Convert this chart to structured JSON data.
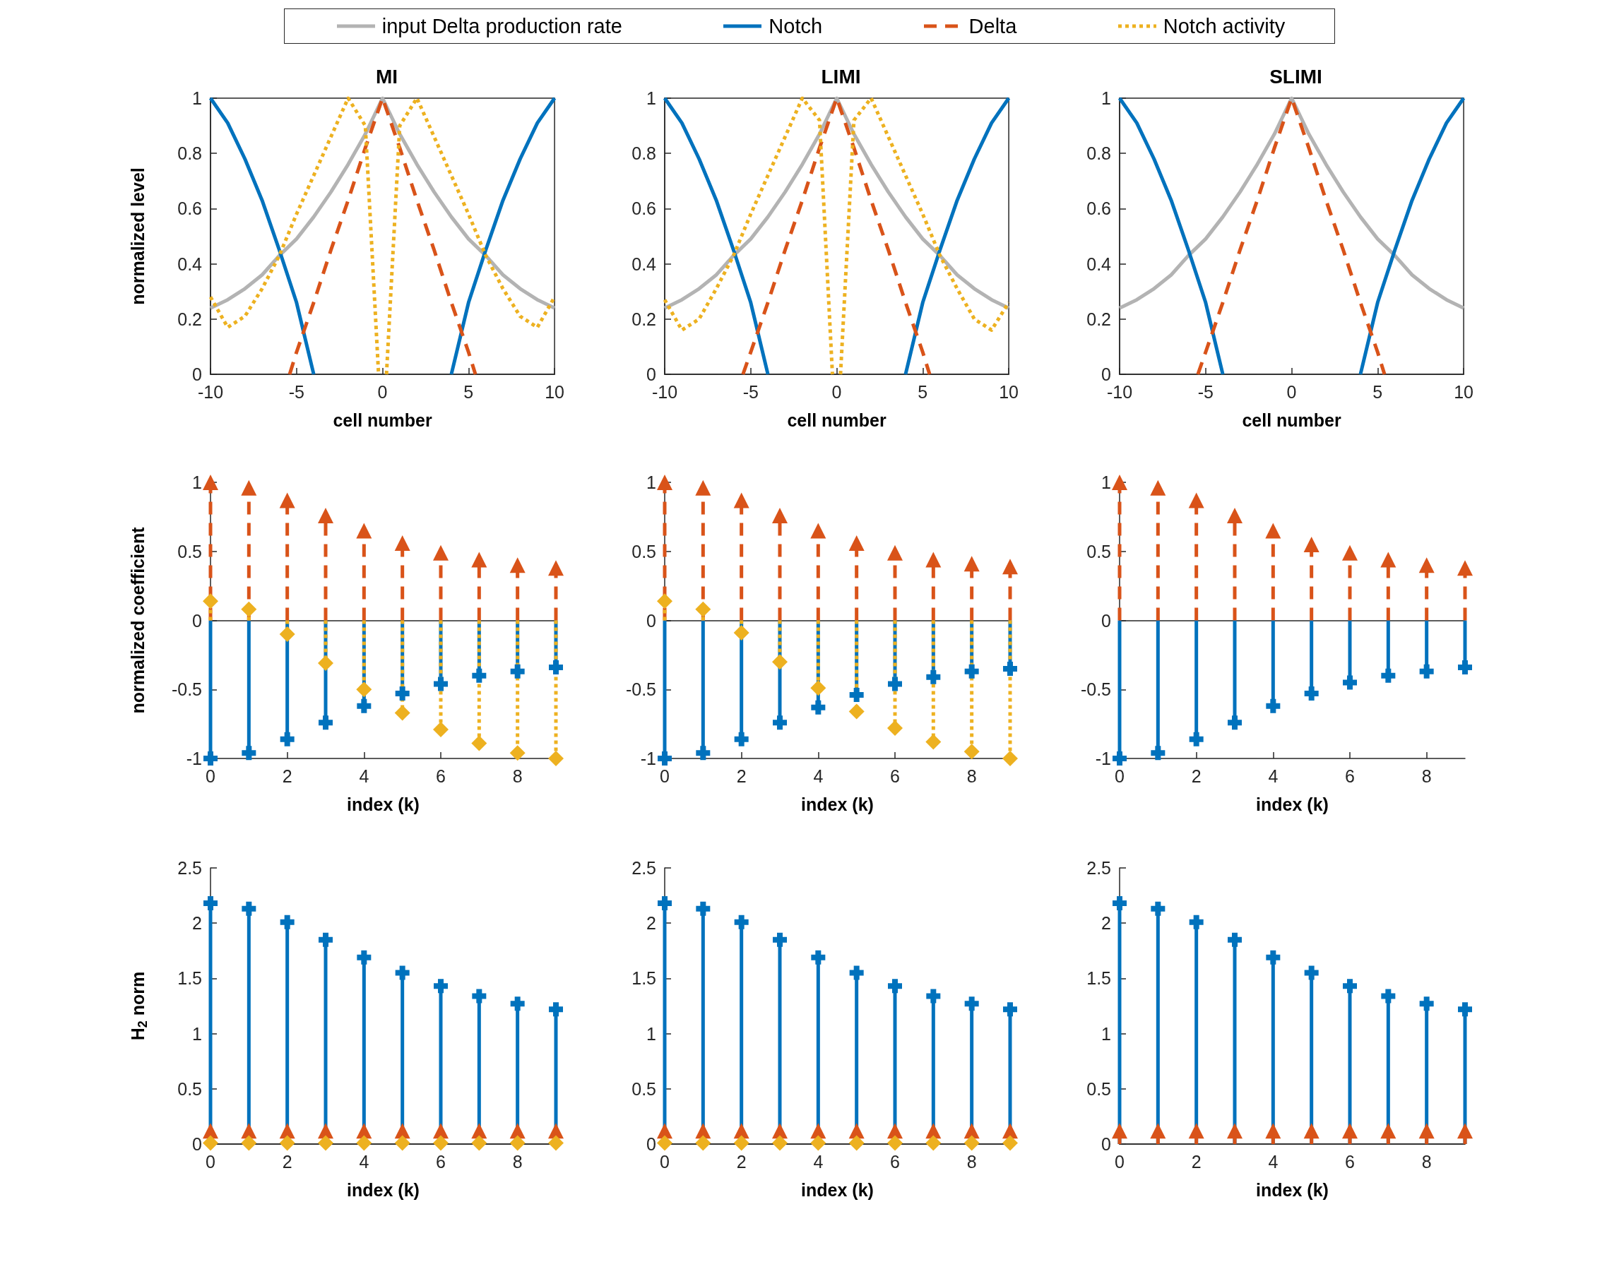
{
  "chart_data": [
    {
      "type": "line",
      "title": "MI",
      "xlabel": "cell number",
      "ylabel": "normalized level",
      "legend": "top",
      "x": [
        -10,
        -9,
        -8,
        -7,
        -6,
        -5,
        -4,
        -3,
        -2,
        -1,
        0,
        1,
        2,
        3,
        4,
        5,
        6,
        7,
        8,
        9,
        10
      ],
      "xlim": [
        -10,
        10
      ],
      "xticks": [
        -10,
        -5,
        0,
        5,
        10
      ],
      "ylim": [
        0,
        1
      ],
      "yticks": [
        0,
        0.2,
        0.4,
        0.6,
        0.8,
        1
      ],
      "series": [
        {
          "name": "input Delta production rate",
          "color": "#b3b3b3",
          "line_style": "solid",
          "values": [
            0.24,
            0.27,
            0.31,
            0.36,
            0.43,
            0.49,
            0.57,
            0.66,
            0.76,
            0.87,
            1,
            0.87,
            0.76,
            0.66,
            0.57,
            0.49,
            0.43,
            0.36,
            0.31,
            0.27,
            0.24
          ]
        },
        {
          "name": "Notch",
          "color": "#0072bd",
          "line_style": "solid",
          "x": [
            -10,
            -9,
            -8,
            -7,
            -6,
            -5,
            -4,
            0,
            4,
            5,
            6,
            7,
            8,
            9,
            10
          ],
          "values": [
            1,
            0.91,
            0.78,
            0.63,
            0.45,
            0.26,
            0,
            null,
            0,
            0.26,
            0.45,
            0.63,
            0.78,
            0.91,
            1
          ]
        },
        {
          "name": "Delta",
          "color": "#d95319",
          "line_style": "dashed",
          "x": [
            -5.4,
            -5,
            -4,
            -3,
            -2,
            -1,
            0,
            1,
            2,
            3,
            4,
            5,
            5.4
          ],
          "values": [
            0,
            0.08,
            0.26,
            0.45,
            0.63,
            0.82,
            1,
            0.82,
            0.63,
            0.45,
            0.26,
            0.08,
            0
          ]
        },
        {
          "name": "Notch activity",
          "color": "#edb120",
          "line_style": "dotted",
          "x": [
            -10,
            -9,
            -8,
            -7,
            -6,
            -5,
            -4,
            -3,
            -2,
            -1,
            -0.23,
            0,
            0.23,
            1,
            2,
            3,
            4,
            5,
            6,
            7,
            8,
            9,
            10
          ],
          "values": [
            0.28,
            0.17,
            0.21,
            0.31,
            0.43,
            0.58,
            0.72,
            0.86,
            1,
            0.9,
            0,
            null,
            0,
            0.9,
            1,
            0.86,
            0.72,
            0.58,
            0.43,
            0.31,
            0.21,
            0.17,
            0.28
          ]
        }
      ]
    },
    {
      "type": "line",
      "title": "LIMI",
      "xlabel": "cell number",
      "x": [
        -10,
        -9,
        -8,
        -7,
        -6,
        -5,
        -4,
        -3,
        -2,
        -1,
        0,
        1,
        2,
        3,
        4,
        5,
        6,
        7,
        8,
        9,
        10
      ],
      "xlim": [
        -10,
        10
      ],
      "xticks": [
        -10,
        -5,
        0,
        5,
        10
      ],
      "ylim": [
        0,
        1
      ],
      "yticks": [
        0,
        0.2,
        0.4,
        0.6,
        0.8,
        1
      ],
      "series": [
        {
          "name": "input Delta production rate",
          "color": "#b3b3b3",
          "line_style": "solid",
          "values": [
            0.24,
            0.27,
            0.31,
            0.36,
            0.43,
            0.49,
            0.57,
            0.66,
            0.76,
            0.87,
            1,
            0.87,
            0.76,
            0.66,
            0.57,
            0.49,
            0.43,
            0.36,
            0.31,
            0.27,
            0.24
          ]
        },
        {
          "name": "Notch",
          "color": "#0072bd",
          "line_style": "solid",
          "x": [
            -10,
            -9,
            -8,
            -7,
            -6,
            -5,
            -4,
            0,
            4,
            5,
            6,
            7,
            8,
            9,
            10
          ],
          "values": [
            1,
            0.91,
            0.78,
            0.63,
            0.45,
            0.26,
            0,
            null,
            0,
            0.26,
            0.45,
            0.63,
            0.78,
            0.91,
            1
          ]
        },
        {
          "name": "Delta",
          "color": "#d95319",
          "line_style": "dashed",
          "x": [
            -5.45,
            -5,
            -4,
            -3,
            -2,
            -1,
            0,
            1,
            2,
            3,
            4,
            5,
            5.4
          ],
          "values": [
            0,
            0.08,
            0.26,
            0.45,
            0.63,
            0.82,
            1,
            0.82,
            0.63,
            0.45,
            0.26,
            0.08,
            0
          ]
        },
        {
          "name": "Notch activity",
          "color": "#edb120",
          "line_style": "dotted",
          "x": [
            -10,
            -9,
            -8,
            -7,
            -6,
            -5,
            -4,
            -3,
            -2,
            -1,
            -0.25,
            0,
            0.22,
            1,
            2,
            3,
            4,
            5,
            6,
            7,
            8,
            9,
            10
          ],
          "values": [
            0.27,
            0.16,
            0.2,
            0.31,
            0.43,
            0.58,
            0.72,
            0.86,
            1,
            0.92,
            0,
            null,
            0,
            0.92,
            1,
            0.86,
            0.72,
            0.58,
            0.43,
            0.31,
            0.2,
            0.16,
            0.26
          ]
        }
      ]
    },
    {
      "type": "line",
      "title": "SLIMI",
      "xlabel": "cell number",
      "x": [
        -10,
        -9,
        -8,
        -7,
        -6,
        -5,
        -4,
        -3,
        -2,
        -1,
        0,
        1,
        2,
        3,
        4,
        5,
        6,
        7,
        8,
        9,
        10
      ],
      "xlim": [
        -10,
        10
      ],
      "xticks": [
        -10,
        -5,
        0,
        5,
        10
      ],
      "ylim": [
        0,
        1
      ],
      "yticks": [
        0,
        0.2,
        0.4,
        0.6,
        0.8,
        1
      ],
      "series": [
        {
          "name": "input Delta production rate",
          "color": "#b3b3b3",
          "line_style": "solid",
          "values": [
            0.24,
            0.27,
            0.31,
            0.36,
            0.43,
            0.49,
            0.57,
            0.66,
            0.76,
            0.87,
            1,
            0.87,
            0.76,
            0.66,
            0.57,
            0.49,
            0.43,
            0.36,
            0.31,
            0.27,
            0.24
          ]
        },
        {
          "name": "Notch",
          "color": "#0072bd",
          "line_style": "solid",
          "x": [
            -10,
            -9,
            -8,
            -7,
            -6,
            -5,
            -4,
            0,
            4,
            5,
            6,
            7,
            8,
            9,
            10
          ],
          "values": [
            1,
            0.91,
            0.78,
            0.63,
            0.45,
            0.26,
            0,
            null,
            0,
            0.26,
            0.45,
            0.63,
            0.78,
            0.91,
            1
          ]
        },
        {
          "name": "Delta",
          "color": "#d95319",
          "line_style": "dashed",
          "x": [
            -5.45,
            -5,
            -4,
            -3,
            -2,
            -1,
            0,
            1,
            2,
            3,
            4,
            5,
            5.4
          ],
          "values": [
            0,
            0.08,
            0.26,
            0.45,
            0.63,
            0.82,
            1,
            0.82,
            0.63,
            0.45,
            0.26,
            0.08,
            0
          ]
        }
      ]
    },
    {
      "type": "lollipop",
      "xlabel": "index (k)",
      "ylabel": "normalized coefficient",
      "x": [
        0,
        1,
        2,
        3,
        4,
        5,
        6,
        7,
        8,
        9
      ],
      "xlim": [
        0,
        9
      ],
      "xticks": [
        0,
        2,
        4,
        6,
        8
      ],
      "ylim": [
        -1,
        1
      ],
      "yticks": [
        -1,
        -0.5,
        0,
        0.5,
        1
      ],
      "series": [
        {
          "name": "Notch",
          "color": "#0072bd",
          "line_style": "solid",
          "marker": "cross",
          "values": [
            -1,
            -0.96,
            -0.86,
            -0.74,
            -0.62,
            -0.53,
            -0.46,
            -0.4,
            -0.37,
            -0.34
          ]
        },
        {
          "name": "Delta",
          "color": "#d95319",
          "line_style": "dashed",
          "marker": "triangle",
          "values": [
            1,
            0.96,
            0.87,
            0.76,
            0.65,
            0.56,
            0.49,
            0.44,
            0.4,
            0.38
          ]
        },
        {
          "name": "Notch activity",
          "color": "#edb120",
          "line_style": "dotted",
          "marker": "diamond",
          "values": [
            0.14,
            0.08,
            -0.1,
            -0.31,
            -0.5,
            -0.67,
            -0.79,
            -0.89,
            -0.96,
            -1
          ]
        }
      ]
    },
    {
      "type": "lollipop",
      "xlabel": "index (k)",
      "x": [
        0,
        1,
        2,
        3,
        4,
        5,
        6,
        7,
        8,
        9
      ],
      "xlim": [
        0,
        9
      ],
      "xticks": [
        0,
        2,
        4,
        6,
        8
      ],
      "ylim": [
        -1,
        1
      ],
      "yticks": [
        -1,
        -0.5,
        0,
        0.5,
        1
      ],
      "series": [
        {
          "name": "Notch",
          "color": "#0072bd",
          "line_style": "solid",
          "marker": "cross",
          "values": [
            -1,
            -0.96,
            -0.86,
            -0.74,
            -0.63,
            -0.54,
            -0.46,
            -0.41,
            -0.37,
            -0.35
          ]
        },
        {
          "name": "Delta",
          "color": "#d95319",
          "line_style": "dashed",
          "marker": "triangle",
          "values": [
            1,
            0.96,
            0.87,
            0.76,
            0.65,
            0.56,
            0.49,
            0.44,
            0.41,
            0.39
          ]
        },
        {
          "name": "Notch activity",
          "color": "#edb120",
          "line_style": "dotted",
          "marker": "diamond",
          "values": [
            0.14,
            0.08,
            -0.09,
            -0.3,
            -0.49,
            -0.66,
            -0.78,
            -0.88,
            -0.95,
            -1
          ]
        }
      ]
    },
    {
      "type": "lollipop",
      "xlabel": "index (k)",
      "x": [
        0,
        1,
        2,
        3,
        4,
        5,
        6,
        7,
        8,
        9
      ],
      "xlim": [
        0,
        9
      ],
      "xticks": [
        0,
        2,
        4,
        6,
        8
      ],
      "ylim": [
        -1,
        1
      ],
      "yticks": [
        -1,
        -0.5,
        0,
        0.5,
        1
      ],
      "series": [
        {
          "name": "Notch",
          "color": "#0072bd",
          "line_style": "solid",
          "marker": "cross",
          "values": [
            -1,
            -0.96,
            -0.86,
            -0.74,
            -0.62,
            -0.53,
            -0.45,
            -0.4,
            -0.37,
            -0.34
          ]
        },
        {
          "name": "Delta",
          "color": "#d95319",
          "line_style": "dashed",
          "marker": "triangle",
          "values": [
            1,
            0.96,
            0.87,
            0.76,
            0.65,
            0.55,
            0.49,
            0.44,
            0.4,
            0.38
          ]
        }
      ]
    },
    {
      "type": "lollipop",
      "xlabel": "index (k)",
      "ylabel": "H$_{2}$ norm",
      "x": [
        0,
        1,
        2,
        3,
        4,
        5,
        6,
        7,
        8,
        9
      ],
      "xlim": [
        0,
        9
      ],
      "xticks": [
        0,
        2,
        4,
        6,
        8
      ],
      "ylim": [
        0,
        2.5
      ],
      "yticks": [
        0,
        0.5,
        1,
        1.5,
        2,
        2.5
      ],
      "series": [
        {
          "name": "Notch",
          "color": "#0072bd",
          "line_style": "solid",
          "marker": "cross",
          "values": [
            2.18,
            2.13,
            2.01,
            1.85,
            1.69,
            1.55,
            1.43,
            1.34,
            1.27,
            1.22
          ]
        },
        {
          "name": "Delta",
          "color": "#d95319",
          "line_style": "dashed",
          "marker": "triangle",
          "values": [
            0.12,
            0.12,
            0.12,
            0.12,
            0.12,
            0.12,
            0.12,
            0.12,
            0.12,
            0.12
          ]
        },
        {
          "name": "Notch activity",
          "color": "#edb120",
          "line_style": "dotted",
          "marker": "diamond",
          "values": [
            0.01,
            0.01,
            0.01,
            0.01,
            0.01,
            0.01,
            0.01,
            0.01,
            0.01,
            0.01
          ]
        }
      ]
    },
    {
      "type": "lollipop",
      "xlabel": "index (k)",
      "x": [
        0,
        1,
        2,
        3,
        4,
        5,
        6,
        7,
        8,
        9
      ],
      "xlim": [
        0,
        9
      ],
      "xticks": [
        0,
        2,
        4,
        6,
        8
      ],
      "ylim": [
        0,
        2.5
      ],
      "yticks": [
        0,
        0.5,
        1,
        1.5,
        2,
        2.5
      ],
      "series": [
        {
          "name": "Notch",
          "color": "#0072bd",
          "line_style": "solid",
          "marker": "cross",
          "values": [
            2.18,
            2.13,
            2.01,
            1.85,
            1.69,
            1.55,
            1.43,
            1.34,
            1.27,
            1.22
          ]
        },
        {
          "name": "Delta",
          "color": "#d95319",
          "line_style": "dashed",
          "marker": "triangle",
          "values": [
            0.12,
            0.12,
            0.12,
            0.12,
            0.12,
            0.12,
            0.12,
            0.12,
            0.12,
            0.12
          ]
        },
        {
          "name": "Notch activity",
          "color": "#edb120",
          "line_style": "dotted",
          "marker": "diamond",
          "values": [
            0.01,
            0.01,
            0.01,
            0.01,
            0.01,
            0.01,
            0.01,
            0.01,
            0.01,
            0.01
          ]
        }
      ]
    },
    {
      "type": "lollipop",
      "xlabel": "index (k)",
      "x": [
        0,
        1,
        2,
        3,
        4,
        5,
        6,
        7,
        8,
        9
      ],
      "xlim": [
        0,
        9
      ],
      "xticks": [
        0,
        2,
        4,
        6,
        8
      ],
      "ylim": [
        0,
        2.5
      ],
      "yticks": [
        0,
        0.5,
        1,
        1.5,
        2,
        2.5
      ],
      "series": [
        {
          "name": "Notch",
          "color": "#0072bd",
          "line_style": "solid",
          "marker": "cross",
          "values": [
            2.18,
            2.13,
            2.01,
            1.85,
            1.69,
            1.55,
            1.43,
            1.34,
            1.27,
            1.22
          ]
        },
        {
          "name": "Delta",
          "color": "#d95319",
          "line_style": "dashed",
          "marker": "triangle",
          "values": [
            0.12,
            0.12,
            0.12,
            0.12,
            0.12,
            0.12,
            0.12,
            0.12,
            0.12,
            0.12
          ]
        }
      ]
    }
  ]
}
